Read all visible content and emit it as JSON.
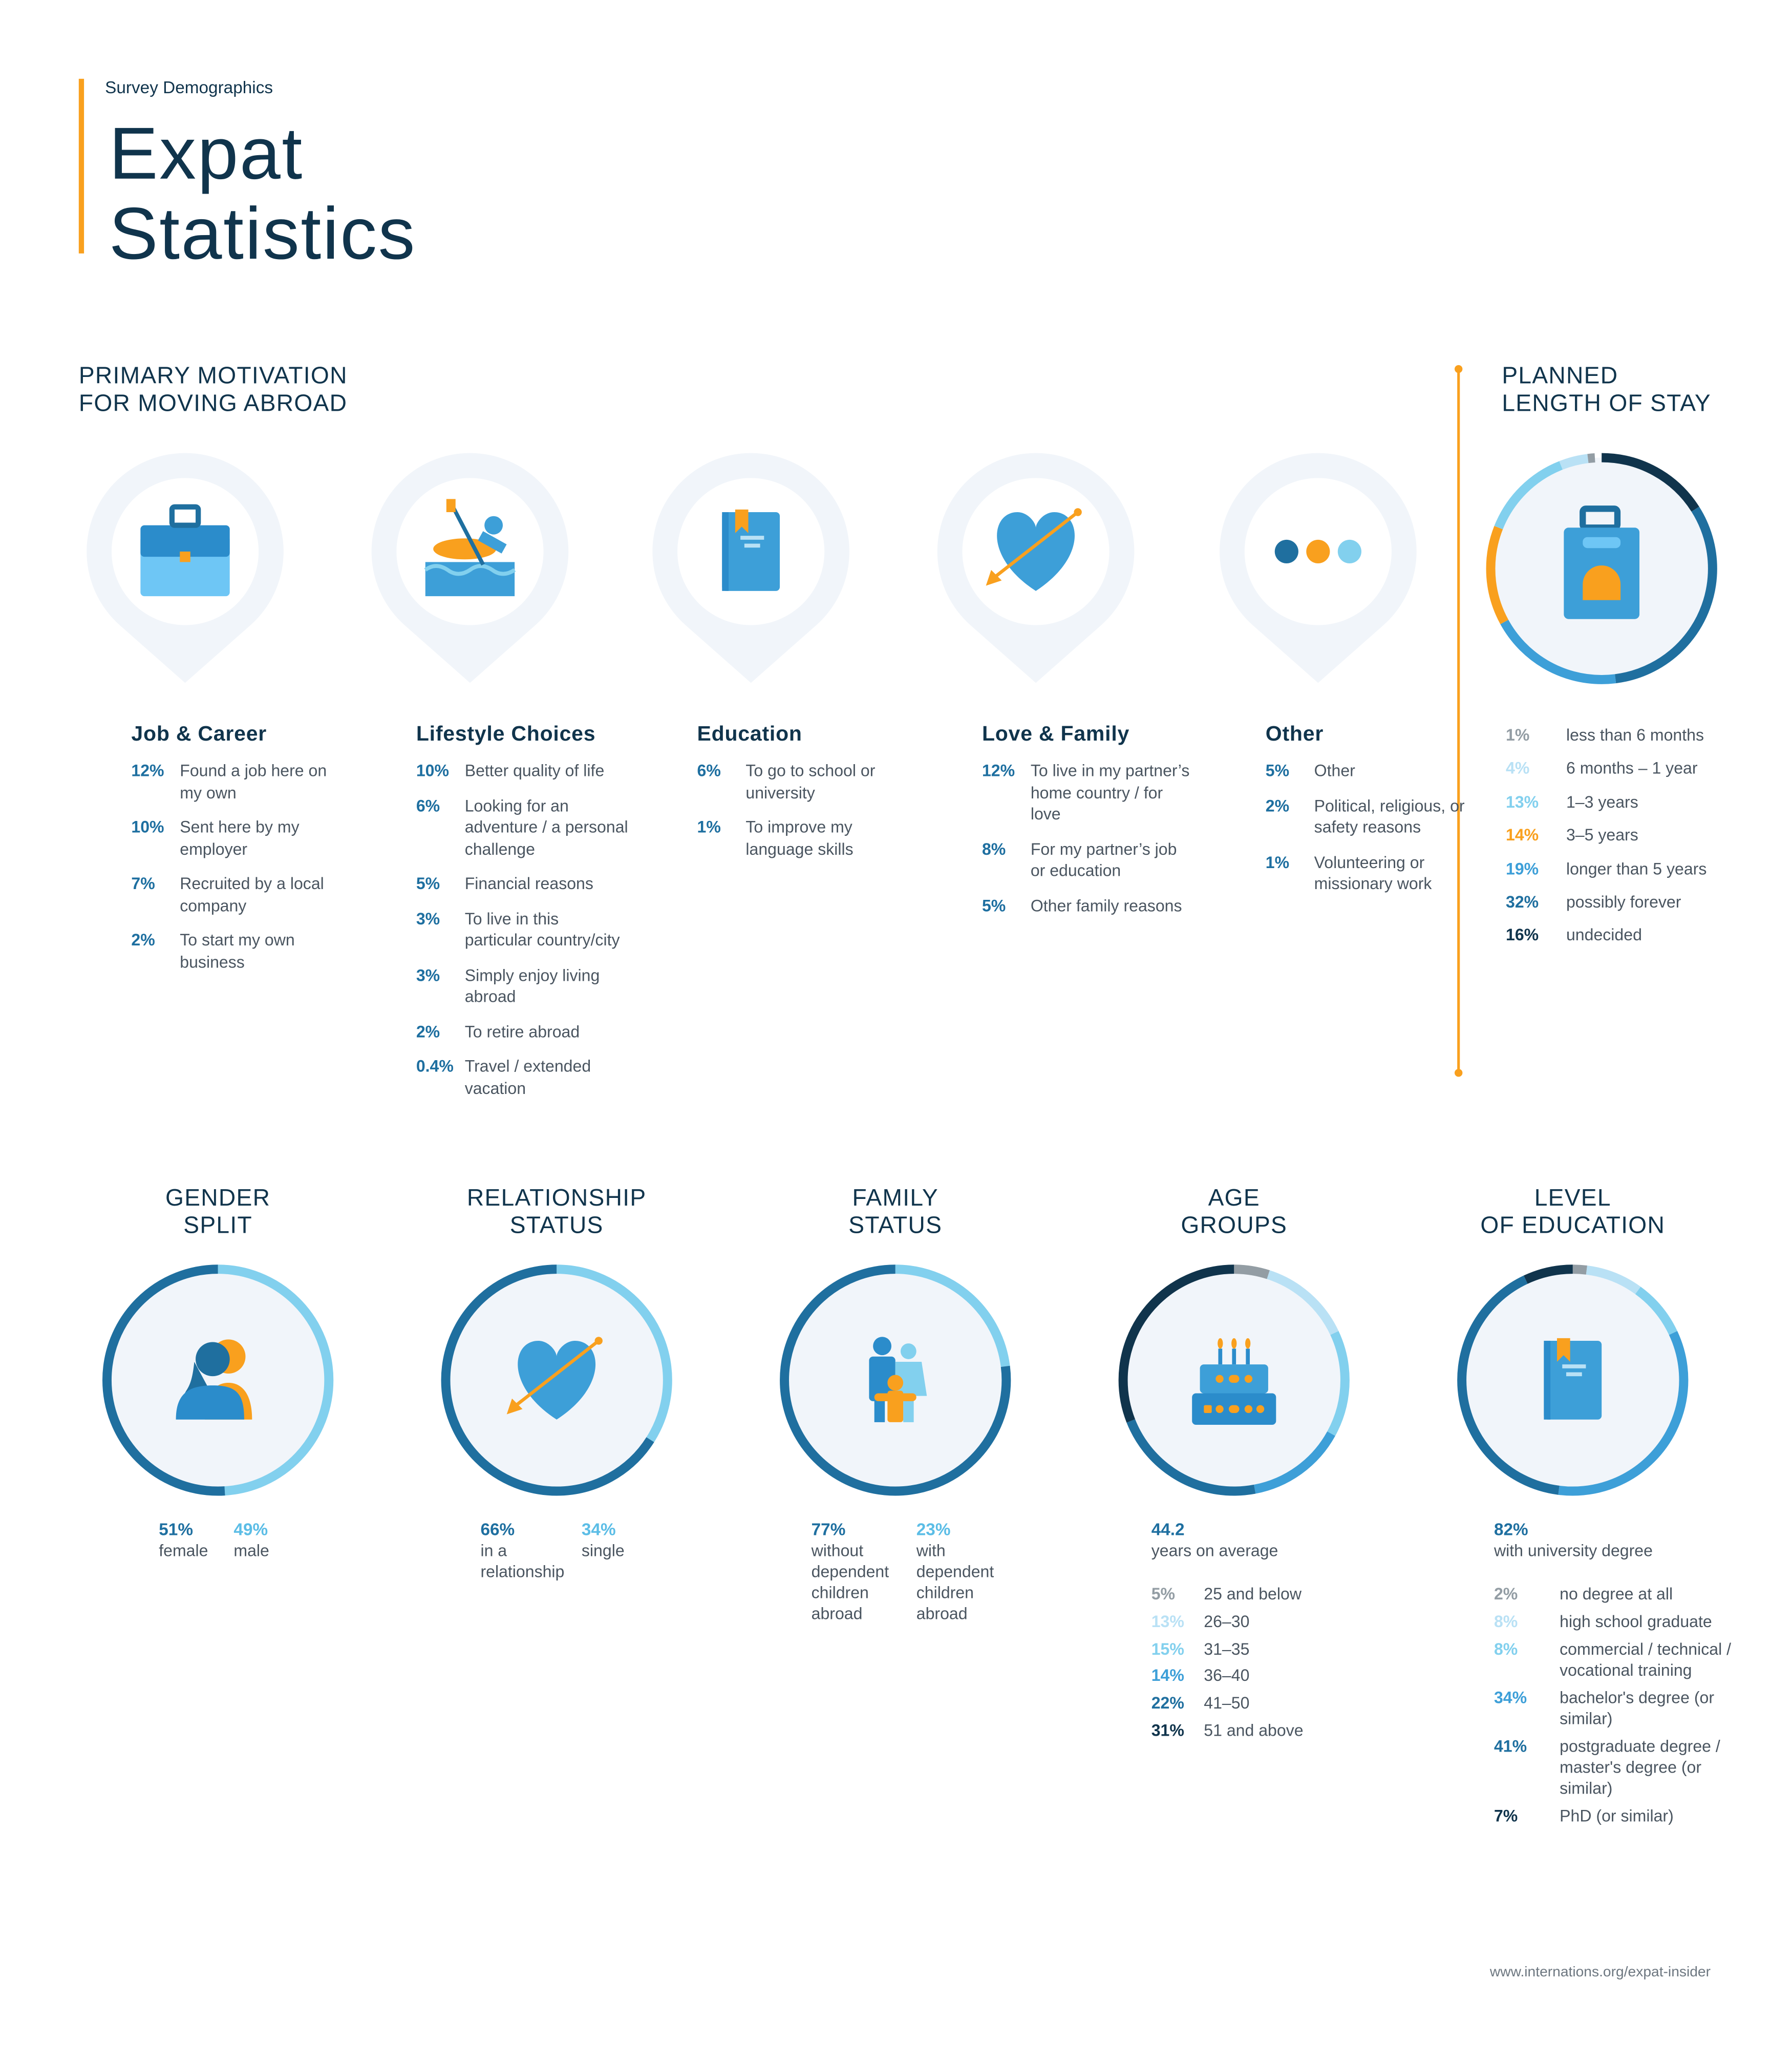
{
  "header": {
    "kicker": "Survey Demographics",
    "title_line1": "Expat",
    "title_line2": "Statistics"
  },
  "motivation": {
    "heading_line1": "PRIMARY MOTIVATION",
    "heading_line2": "FOR MOVING ABROAD",
    "columns": [
      {
        "icon": "briefcase-icon",
        "title": "Job & Career",
        "items": [
          {
            "pct": "12%",
            "label": "Found a job here on my own"
          },
          {
            "pct": "10%",
            "label": "Sent here by my employer"
          },
          {
            "pct": "7%",
            "label": "Recruited by a local company"
          },
          {
            "pct": "2%",
            "label": "To start my own business"
          }
        ]
      },
      {
        "icon": "rafting-icon",
        "title": "Lifestyle Choices",
        "items": [
          {
            "pct": "10%",
            "label": "Better quality of life"
          },
          {
            "pct": "6%",
            "label": "Looking for an adventure /  a personal challenge"
          },
          {
            "pct": "5%",
            "label": "Financial reasons"
          },
          {
            "pct": "3%",
            "label": "To live in this particular country/city"
          },
          {
            "pct": "3%",
            "label": "Simply enjoy living abroad"
          },
          {
            "pct": "2%",
            "label": "To retire abroad"
          },
          {
            "pct": "0.4%",
            "label": "Travel / extended vacation"
          }
        ]
      },
      {
        "icon": "book-icon",
        "title": "Education",
        "items": [
          {
            "pct": "6%",
            "label": "To go to school or university"
          },
          {
            "pct": "1%",
            "label": "To improve my language skills"
          }
        ]
      },
      {
        "icon": "heart-arrow-icon",
        "title": "Love & Family",
        "items": [
          {
            "pct": "12%",
            "label": "To live in my partner’s home country / for love"
          },
          {
            "pct": "8%",
            "label": "For my partner’s job or education"
          },
          {
            "pct": "5%",
            "label": "Other family reasons"
          }
        ]
      },
      {
        "icon": "dots-icon",
        "title": "Other",
        "items": [
          {
            "pct": "5%",
            "label": "Other"
          },
          {
            "pct": "2%",
            "label": "Political, religious, or safety reasons"
          },
          {
            "pct": "1%",
            "label": "Volunteering or missionary work"
          }
        ]
      }
    ]
  },
  "colors": {
    "dark": "#10344c",
    "mid": "#1f6f9f",
    "blue": "#3d9fd8",
    "light": "#82d0ee",
    "pale": "#b9e1f5",
    "grey": "#939da4",
    "orange": "#f9a01e",
    "accent_text": "#1e6fa0"
  },
  "stay": {
    "heading_line1": "PLANNED",
    "heading_line2": "LENGTH OF STAY",
    "icon": "luggage-icon",
    "legend": [
      {
        "pct": "1%",
        "label": "less than 6 months",
        "value": 1,
        "color": "#939da4"
      },
      {
        "pct": "4%",
        "label": "6 months – 1 year",
        "value": 4,
        "color": "#b9e1f5"
      },
      {
        "pct": "13%",
        "label": "1–3 years",
        "value": 13,
        "color": "#82d0ee"
      },
      {
        "pct": "14%",
        "label": "3–5 years",
        "value": 14,
        "color": "#f9a01e"
      },
      {
        "pct": "19%",
        "label": "longer than 5 years",
        "value": 19,
        "color": "#3d9fd8"
      },
      {
        "pct": "32%",
        "label": "possibly forever",
        "value": 32,
        "color": "#1f6f9f"
      },
      {
        "pct": "16%",
        "label": "undecided",
        "value": 16,
        "color": "#10344c"
      }
    ],
    "ring_order": [
      6,
      5,
      4,
      3,
      2,
      1,
      0
    ]
  },
  "gender": {
    "heading_line1": "GENDER",
    "heading_line2": "SPLIT",
    "a": {
      "pct": "51%",
      "label": "female",
      "value": 51,
      "color": "#1f6f9f"
    },
    "b": {
      "pct": "49%",
      "label": "male",
      "value": 49,
      "color": "#82d0ee"
    }
  },
  "relationship": {
    "heading_line1": "RELATIONSHIP",
    "heading_line2": "STATUS",
    "a": {
      "pct": "66%",
      "label": "in a relationship",
      "value": 66,
      "color": "#1f6f9f"
    },
    "b": {
      "pct": "34%",
      "label": "single",
      "value": 34,
      "color": "#82d0ee"
    }
  },
  "family": {
    "heading_line1": "FAMILY",
    "heading_line2": "STATUS",
    "a": {
      "pct": "77%",
      "label": "without dependent children abroad",
      "value": 77,
      "color": "#1f6f9f"
    },
    "b": {
      "pct": "23%",
      "label": "with dependent children abroad",
      "value": 23,
      "color": "#82d0ee"
    }
  },
  "age": {
    "heading_line1": "AGE",
    "heading_line2": "GROUPS",
    "average": "44.2",
    "average_label": "years on average",
    "legend": [
      {
        "pct": "5%",
        "label": "25 and below",
        "value": 5,
        "color": "#939da4"
      },
      {
        "pct": "13%",
        "label": "26–30",
        "value": 13,
        "color": "#b9e1f5"
      },
      {
        "pct": "15%",
        "label": "31–35",
        "value": 15,
        "color": "#82d0ee"
      },
      {
        "pct": "14%",
        "label": "36–40",
        "value": 14,
        "color": "#3d9fd8"
      },
      {
        "pct": "22%",
        "label": "41–50",
        "value": 22,
        "color": "#1f6f9f"
      },
      {
        "pct": "31%",
        "label": "51 and above",
        "value": 31,
        "color": "#10344c"
      }
    ]
  },
  "education": {
    "heading_line1": "LEVEL",
    "heading_line2": "OF EDUCATION",
    "headline": "82%",
    "headline_label": "with university degree",
    "legend": [
      {
        "pct": "2%",
        "label": "no degree at all",
        "value": 2,
        "color": "#939da4"
      },
      {
        "pct": "8%",
        "label": "high school graduate",
        "value": 8,
        "color": "#b9e1f5"
      },
      {
        "pct": "8%",
        "label": "commercial / technical / vocational training",
        "value": 8,
        "color": "#82d0ee"
      },
      {
        "pct": "34%",
        "label": "bachelor's degree (or similar)",
        "value": 34,
        "color": "#3d9fd8"
      },
      {
        "pct": "41%",
        "label": "postgraduate degree / master's degree (or similar)",
        "value": 41,
        "color": "#1f6f9f"
      },
      {
        "pct": "7%",
        "label": "PhD (or similar)",
        "value": 7,
        "color": "#10344c"
      }
    ]
  },
  "footer": {
    "url": "www.internations.org/expat-insider"
  }
}
